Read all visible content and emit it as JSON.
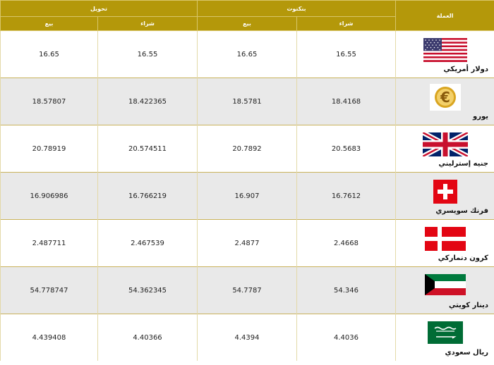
{
  "header": {
    "currency": "العملة",
    "banknotes": "بنكنوت",
    "transfer": "تحويل",
    "buy": "شراء",
    "sell": "بيع"
  },
  "rows": [
    {
      "name": "دولار أمريكي",
      "flag": "us-flag-icon",
      "bank_buy": "16.55",
      "bank_sell": "16.65",
      "transfer_buy": "16.55",
      "transfer_sell": "16.65"
    },
    {
      "name": "يورو",
      "flag": "euro-icon",
      "bank_buy": "18.4168",
      "bank_sell": "18.5781",
      "transfer_buy": "18.422365",
      "transfer_sell": "18.57807"
    },
    {
      "name": "جنيه إسترليني",
      "flag": "uk-flag-icon",
      "bank_buy": "20.5683",
      "bank_sell": "20.7892",
      "transfer_buy": "20.574511",
      "transfer_sell": "20.78919"
    },
    {
      "name": "فرنك سويسري",
      "flag": "swiss-flag-icon",
      "bank_buy": "16.7612",
      "bank_sell": "16.907",
      "transfer_buy": "16.766219",
      "transfer_sell": "16.906986"
    },
    {
      "name": "كرون دنماركي",
      "flag": "denmark-flag-icon",
      "bank_buy": "2.4668",
      "bank_sell": "2.4877",
      "transfer_buy": "2.467539",
      "transfer_sell": "2.487711"
    },
    {
      "name": "دينار كويتي",
      "flag": "kuwait-flag-icon",
      "bank_buy": "54.346",
      "bank_sell": "54.7787",
      "transfer_buy": "54.362345",
      "transfer_sell": "54.778747"
    },
    {
      "name": "ريال سعودي",
      "flag": "saudi-flag-icon",
      "bank_buy": "4.4036",
      "bank_sell": "4.4394",
      "transfer_buy": "4.40366",
      "transfer_sell": "4.439408"
    }
  ]
}
